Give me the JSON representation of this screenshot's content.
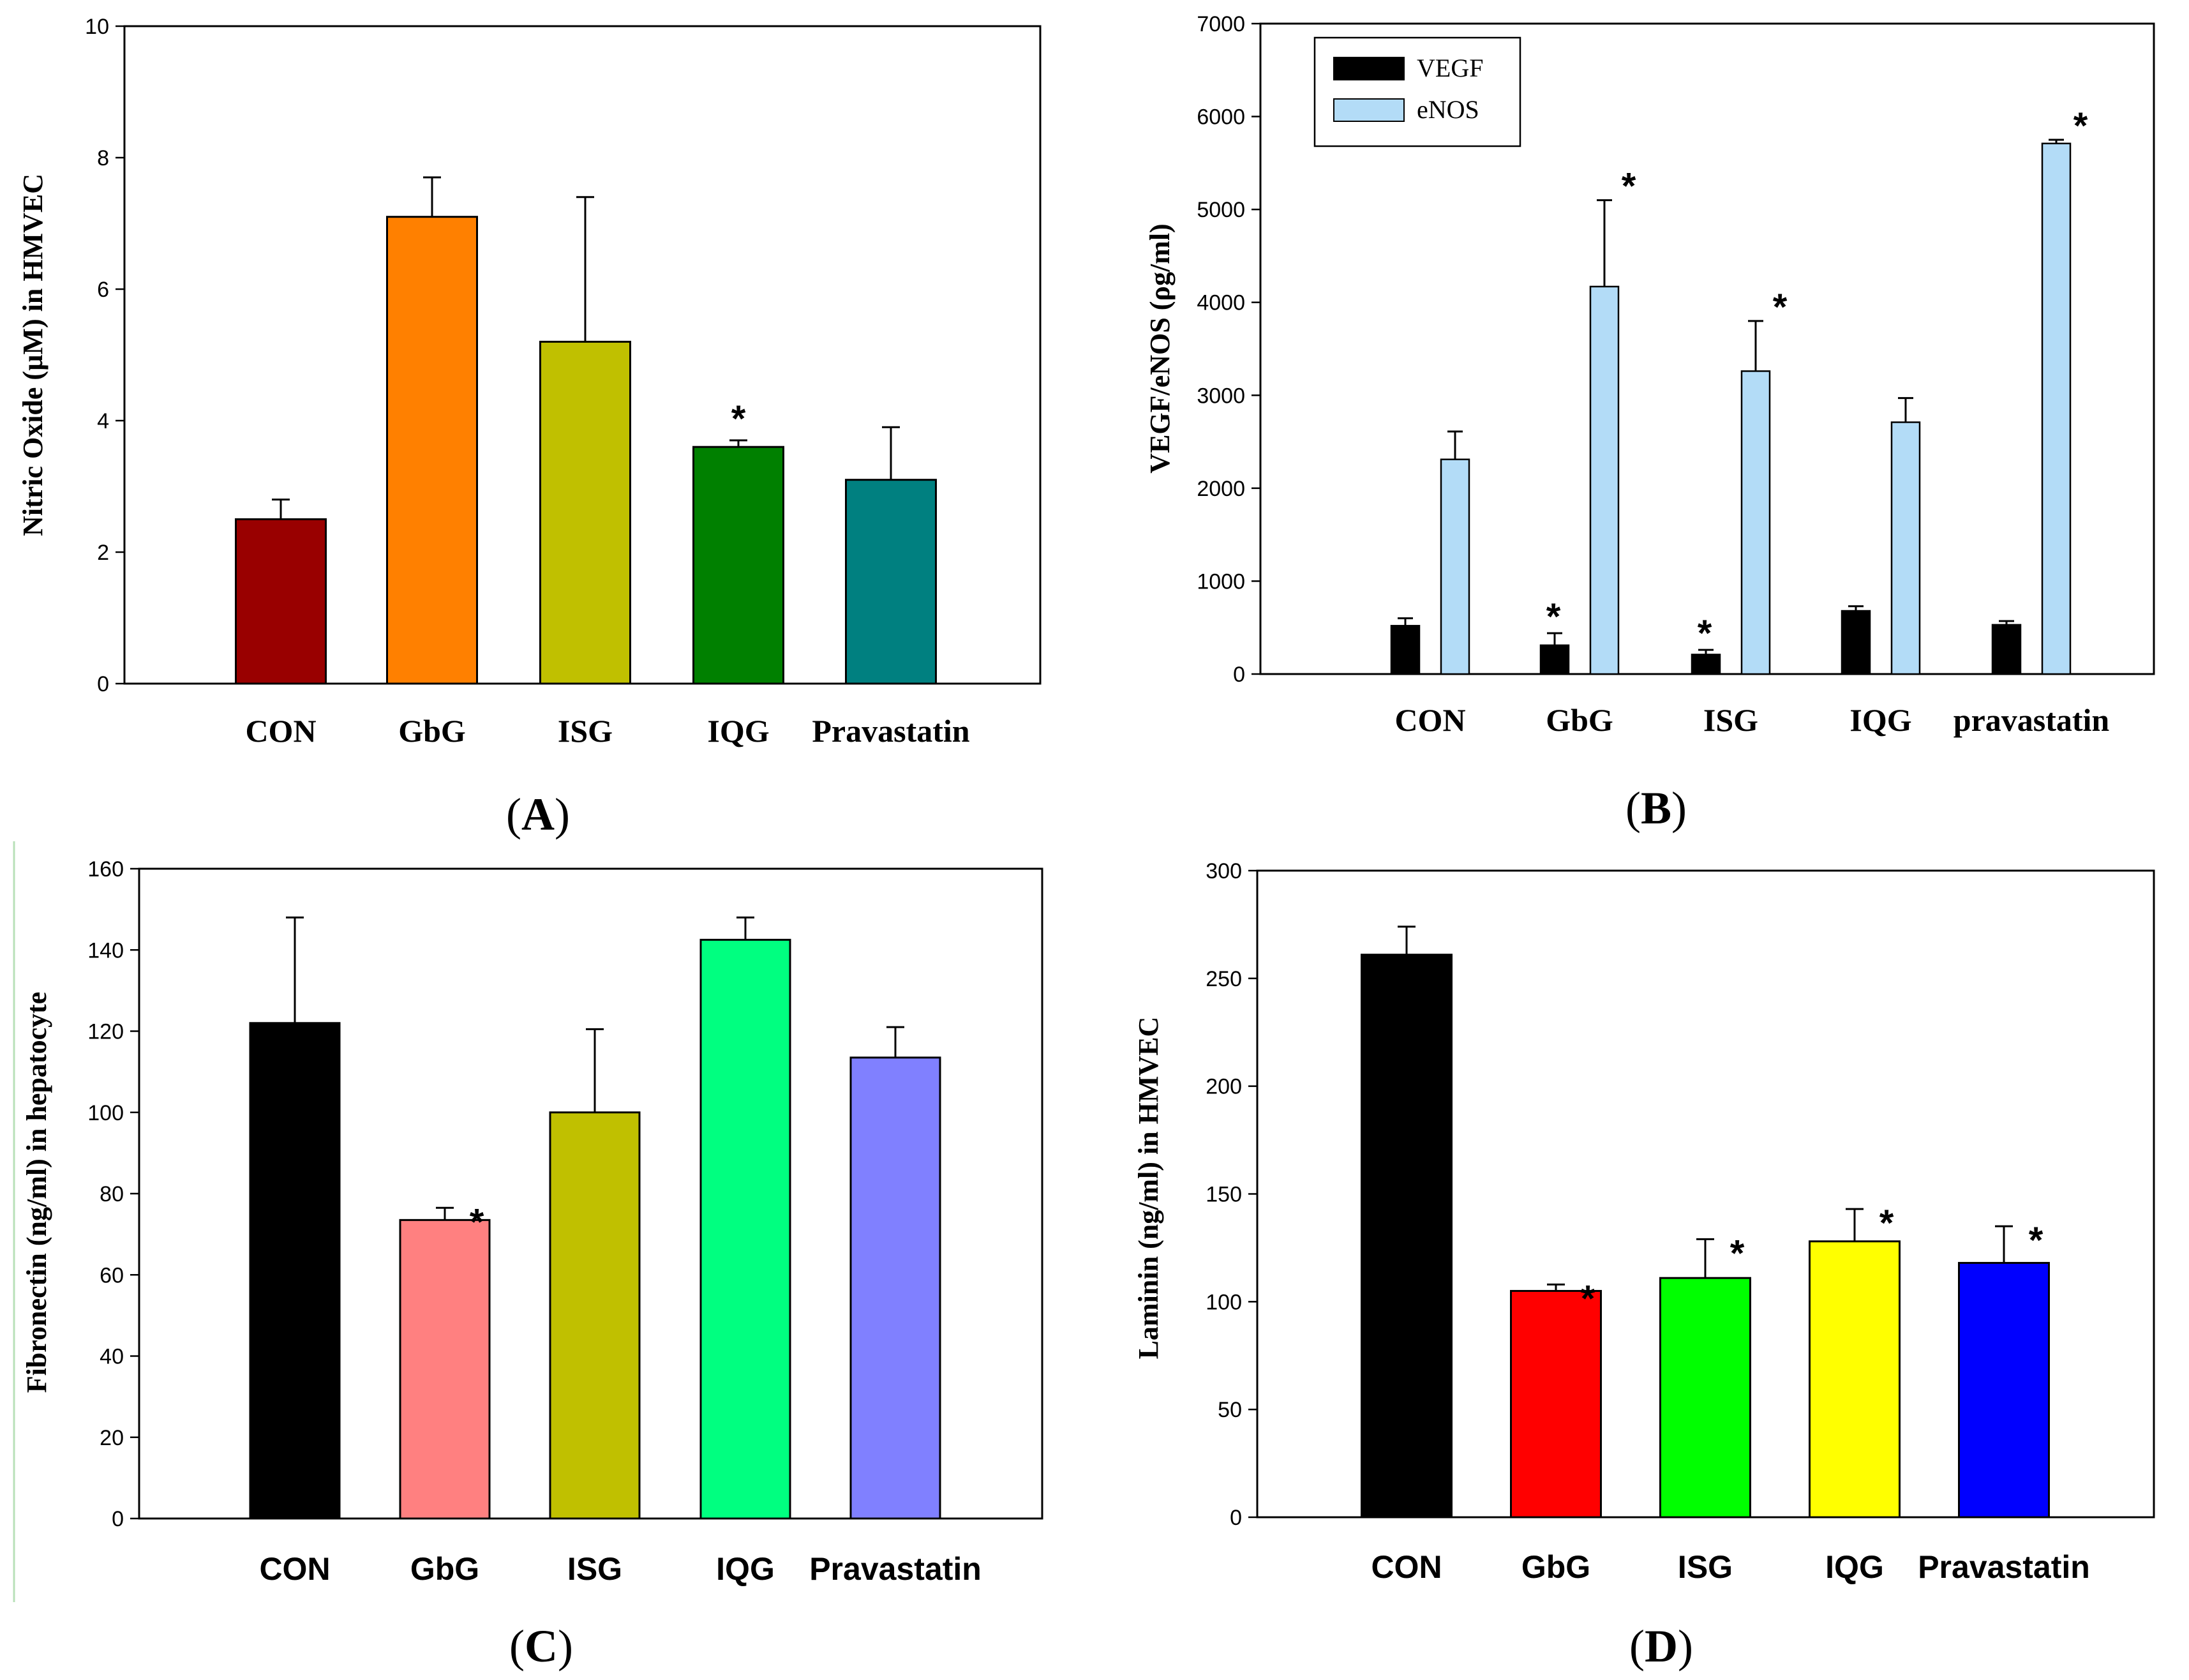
{
  "panels": [
    {
      "id": "A",
      "label": "(A)",
      "label_letter": "A",
      "ylabel": "Nitric Oxide (µM) in HMVEC",
      "cat_font": "serif",
      "yticks": [
        "0",
        "2",
        "4",
        "6",
        "8",
        "10"
      ]
    },
    {
      "id": "B",
      "label": "(B)",
      "label_letter": "B",
      "ylabel": "VEGF/eNOS (ρg/ml)",
      "cat_font": "serif",
      "yticks": [
        "0",
        "1000",
        "2000",
        "3000",
        "4000",
        "5000",
        "6000",
        "7000"
      ]
    },
    {
      "id": "C",
      "label": "(C)",
      "label_letter": "C",
      "ylabel": "Fibronectin (ng/ml) in hepatocyte",
      "cat_font": "sans",
      "yticks": [
        "0",
        "20",
        "40",
        "60",
        "80",
        "100",
        "120",
        "140",
        "160"
      ]
    },
    {
      "id": "D",
      "label": "(D)",
      "label_letter": "D",
      "ylabel": "Laminin (ng/ml) in HMVEC",
      "cat_font": "sans",
      "yticks": [
        "0",
        "50",
        "100",
        "150",
        "200",
        "250",
        "300"
      ]
    }
  ],
  "chart_data": [
    {
      "panel": "A",
      "type": "bar",
      "title": "",
      "xlabel": "",
      "ylabel": "Nitric Oxide (µM) in HMVEC",
      "ylim": [
        0,
        10
      ],
      "categories": [
        "CON",
        "GbG",
        "ISG",
        "IQG",
        "Pravastatin"
      ],
      "values": [
        2.5,
        7.1,
        5.2,
        3.6,
        3.1
      ],
      "errors": [
        0.3,
        0.6,
        2.2,
        0.1,
        0.8
      ],
      "colors": [
        "#990000",
        "#ff8000",
        "#c0c000",
        "#008000",
        "#008080"
      ],
      "significant": [
        false,
        false,
        false,
        true,
        false
      ],
      "star_label": "*"
    },
    {
      "panel": "B",
      "type": "bar",
      "title": "",
      "xlabel": "",
      "ylabel": "VEGF/eNOS (ρg/ml)",
      "ylim": [
        0,
        7000
      ],
      "categories": [
        "CON",
        "GbG",
        "ISG",
        "IQG",
        "pravastatin"
      ],
      "legend_position": "top-left",
      "series": [
        {
          "name": "VEGF",
          "color": "#000000",
          "values": [
            520,
            310,
            210,
            680,
            530
          ],
          "errors": [
            80,
            130,
            50,
            50,
            40
          ],
          "significant": [
            false,
            true,
            true,
            false,
            false
          ]
        },
        {
          "name": "eNOS",
          "color": "#b3dcf7",
          "values": [
            2310,
            4170,
            3260,
            2710,
            5710
          ],
          "errors": [
            300,
            930,
            540,
            260,
            40
          ],
          "significant": [
            false,
            true,
            true,
            false,
            true
          ]
        }
      ],
      "star_label": "*"
    },
    {
      "panel": "C",
      "type": "bar",
      "title": "",
      "xlabel": "",
      "ylabel": "Fibronectin (ng/ml) in hepatocyte",
      "ylim": [
        0,
        160
      ],
      "categories": [
        "CON",
        "GbG",
        "ISG",
        "IQG",
        "Pravastatin"
      ],
      "values": [
        122,
        73.5,
        100,
        142.5,
        113.5
      ],
      "errors": [
        26,
        3,
        20.5,
        5.5,
        7.5
      ],
      "colors": [
        "#000000",
        "#ff8080",
        "#c0c000",
        "#00ff80",
        "#8080ff"
      ],
      "significant": [
        false,
        true,
        false,
        false,
        false
      ],
      "star_label": "*"
    },
    {
      "panel": "D",
      "type": "bar",
      "title": "",
      "xlabel": "",
      "ylabel": "Laminin (ng/ml) in HMVEC",
      "ylim": [
        0,
        300
      ],
      "categories": [
        "CON",
        "GbG",
        "ISG",
        "IQG",
        "Pravastatin"
      ],
      "values": [
        261,
        105,
        111,
        128,
        118
      ],
      "errors": [
        13,
        3,
        18,
        15,
        17
      ],
      "colors": [
        "#000000",
        "#ff0000",
        "#00ff00",
        "#ffff00",
        "#0000ff"
      ],
      "significant": [
        false,
        true,
        true,
        true,
        true
      ],
      "star_label": "*"
    }
  ]
}
